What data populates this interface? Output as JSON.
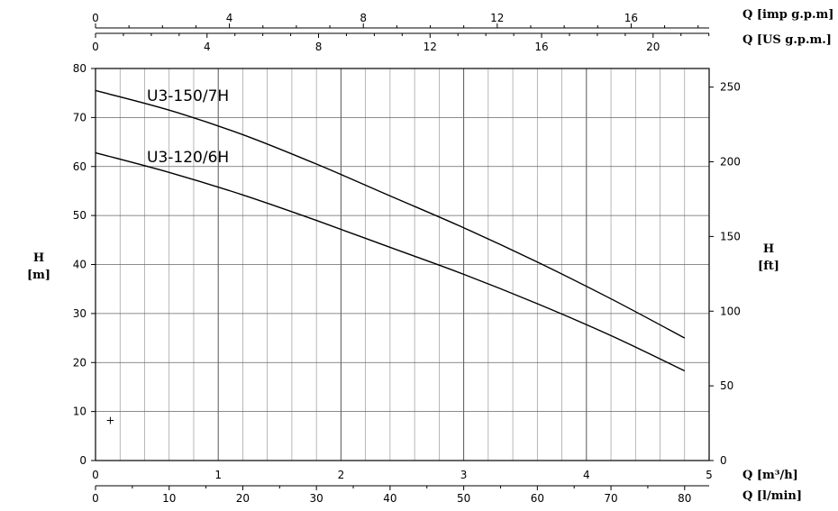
{
  "chart_data": {
    "type": "line",
    "x_axis_primary": {
      "label": "Q [m³/h]",
      "range": [
        0,
        5
      ],
      "ticks": [
        0,
        1,
        2,
        3,
        4,
        5
      ]
    },
    "x_axis_secondary": {
      "label": "Q [l/min]",
      "range": [
        0,
        83.33
      ],
      "ticks": [
        0,
        10,
        20,
        30,
        40,
        50,
        60,
        70,
        80
      ]
    },
    "x_axis_top_us": {
      "label": "Q [US g.p.m.]",
      "range": [
        0,
        22.01
      ],
      "ticks": [
        0,
        4,
        8,
        12,
        16,
        20
      ]
    },
    "x_axis_top_imp": {
      "label": "Q [imp g.p.m]",
      "range": [
        0,
        18.33
      ],
      "ticks": [
        0,
        4,
        8,
        12,
        16
      ]
    },
    "y_axis_left": {
      "label_line1": "H",
      "label_line2": "[m]",
      "range": [
        0,
        80
      ],
      "ticks": [
        0,
        10,
        20,
        30,
        40,
        50,
        60,
        70,
        80
      ]
    },
    "y_axis_right": {
      "label_line1": "H",
      "label_line2": "[ft]",
      "range": [
        0,
        262.47
      ],
      "ticks": [
        0,
        50,
        100,
        150,
        200,
        250
      ]
    },
    "grid": true,
    "series": [
      {
        "name": "U3-150/7H",
        "x_unit": "l/min",
        "x": [
          0,
          10,
          20,
          30,
          40,
          50,
          60,
          70,
          80
        ],
        "y": [
          75.5,
          71.5,
          66.5,
          60.5,
          54,
          47.5,
          40.5,
          33,
          25
        ]
      },
      {
        "name": "U3-120/6H",
        "x_unit": "l/min",
        "x": [
          0,
          10,
          20,
          30,
          40,
          50,
          60,
          70,
          80
        ],
        "y": [
          62.8,
          58.8,
          54.2,
          49,
          43.5,
          38,
          32,
          25.5,
          18.3
        ]
      }
    ],
    "annotation_marker": {
      "x": 2,
      "y": 8
    }
  }
}
